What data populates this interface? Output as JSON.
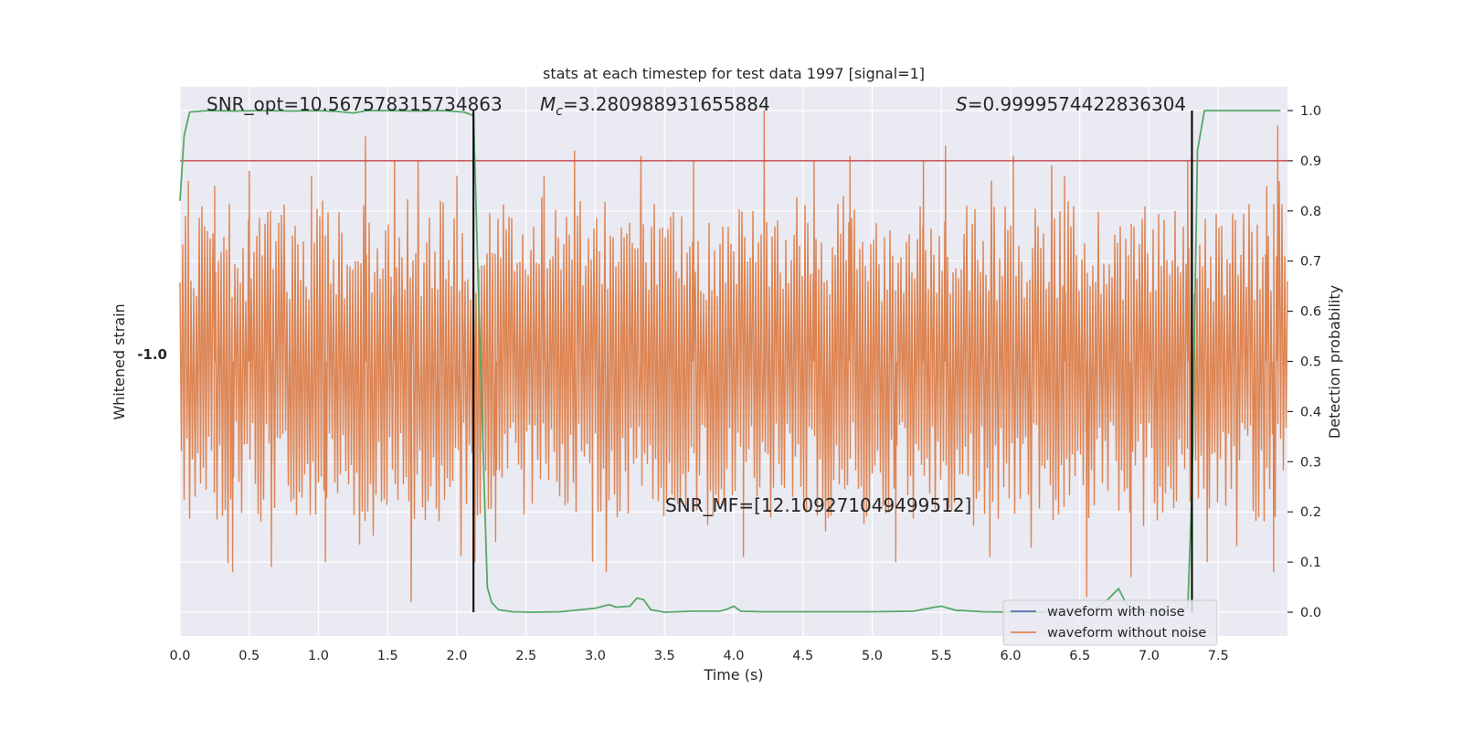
{
  "chart_data": {
    "type": "line",
    "title": "stats at each timestep for test data 1997 [signal=1]",
    "xlabel": "Time (s)",
    "ylabel_left": "Whitened strain",
    "ylabel_right": "Detection probability",
    "xlim": [
      0,
      8
    ],
    "ylim_right": [
      -0.05,
      1.05
    ],
    "x_ticks": [
      "0.0",
      "0.5",
      "1.0",
      "1.5",
      "2.0",
      "2.5",
      "3.0",
      "3.5",
      "4.0",
      "4.5",
      "5.0",
      "5.5",
      "6.0",
      "6.5",
      "7.0",
      "7.5"
    ],
    "y_ticks_right": [
      "0.0",
      "0.1",
      "0.2",
      "0.3",
      "0.4",
      "0.5",
      "0.6",
      "0.7",
      "0.8",
      "0.9",
      "1.0"
    ],
    "left_tick_label": "-1.0",
    "threshold": 0.9,
    "boundaries": [
      2.12,
      7.31
    ],
    "annotations": {
      "snr_opt": "SNR_opt=10.567578315734863",
      "mc_symbol": "M",
      "mc_sub": "c",
      "mc_value": "=3.280988931655884",
      "s_symbol": "S",
      "s_value": "=0.9999574422836304",
      "snr_mf": "SNR_MF=[12.109271049499512]"
    },
    "legend": {
      "position": "lower right",
      "entries": [
        "waveform with noise",
        "waveform without noise"
      ]
    },
    "grid": true,
    "colors": {
      "background": "#eaeaf2",
      "grid": "#ffffff",
      "noise_waveform": "#4c72b0",
      "clean_waveform": "#dd8452",
      "probability": "#55a868",
      "threshold": "#c44e52",
      "boundary": "#000000"
    },
    "series": [
      {
        "name": "probability",
        "x": [
          0.0,
          0.03,
          0.07,
          0.2,
          0.4,
          0.6,
          0.8,
          1.0,
          1.15,
          1.25,
          1.35,
          1.5,
          1.7,
          1.9,
          2.05,
          2.12,
          2.17,
          2.22,
          2.25,
          2.3,
          2.4,
          2.55,
          2.75,
          3.0,
          3.1,
          3.15,
          3.25,
          3.3,
          3.35,
          3.4,
          3.5,
          3.7,
          3.9,
          3.95,
          4.0,
          4.05,
          4.2,
          4.5,
          5.0,
          5.3,
          5.45,
          5.5,
          5.6,
          5.8,
          6.0,
          6.2,
          6.4,
          6.6,
          6.7,
          6.78,
          6.83,
          6.88,
          7.0,
          7.1,
          7.2,
          7.28,
          7.31,
          7.35,
          7.4,
          7.47,
          7.6,
          7.8,
          7.95
        ],
        "y": [
          0.82,
          0.95,
          0.997,
          1.0,
          0.999,
          1.0,
          0.999,
          1.0,
          0.998,
          0.995,
          1.0,
          1.0,
          0.999,
          1.0,
          0.997,
          0.99,
          0.5,
          0.05,
          0.02,
          0.005,
          0.001,
          0.0,
          0.001,
          0.008,
          0.015,
          0.01,
          0.012,
          0.028,
          0.025,
          0.005,
          0.0,
          0.002,
          0.002,
          0.006,
          0.012,
          0.002,
          0.001,
          0.001,
          0.001,
          0.002,
          0.01,
          0.012,
          0.004,
          0.001,
          0.0,
          0.0,
          0.001,
          0.004,
          0.025,
          0.047,
          0.02,
          0.001,
          0.0,
          0.002,
          0.001,
          0.01,
          0.25,
          0.92,
          1.0,
          1.0,
          1.0,
          1.0,
          1.0
        ]
      },
      {
        "name": "waveform without noise",
        "y_range": [
          0.02,
          1.0
        ],
        "baseline": 0.5,
        "spikes_high": [
          [
            0.06,
            0.86
          ],
          [
            0.25,
            0.85
          ],
          [
            0.5,
            0.88
          ],
          [
            0.95,
            0.87
          ],
          [
            1.34,
            0.95
          ],
          [
            1.55,
            0.9
          ],
          [
            1.72,
            0.9
          ],
          [
            2.0,
            0.87
          ],
          [
            2.63,
            0.87
          ],
          [
            2.85,
            0.92
          ],
          [
            3.33,
            0.91
          ],
          [
            3.71,
            0.9
          ],
          [
            4.22,
            1.0
          ],
          [
            4.58,
            0.9
          ],
          [
            4.84,
            0.91
          ],
          [
            5.37,
            0.9
          ],
          [
            5.53,
            0.93
          ],
          [
            6.02,
            0.91
          ],
          [
            6.39,
            0.87
          ],
          [
            7.28,
            0.9
          ],
          [
            7.85,
            0.85
          ],
          [
            7.93,
            0.97
          ]
        ],
        "spikes_low": [
          [
            0.38,
            0.08
          ],
          [
            0.66,
            0.09
          ],
          [
            1.05,
            0.1
          ],
          [
            1.67,
            0.02
          ],
          [
            2.13,
            0.1
          ],
          [
            2.28,
            0.14
          ],
          [
            2.98,
            0.1
          ],
          [
            4.07,
            0.11
          ],
          [
            5.17,
            0.1
          ],
          [
            5.85,
            0.11
          ],
          [
            6.55,
            0.03
          ],
          [
            6.87,
            0.07
          ],
          [
            7.42,
            0.1
          ],
          [
            7.9,
            0.08
          ]
        ]
      }
    ]
  }
}
